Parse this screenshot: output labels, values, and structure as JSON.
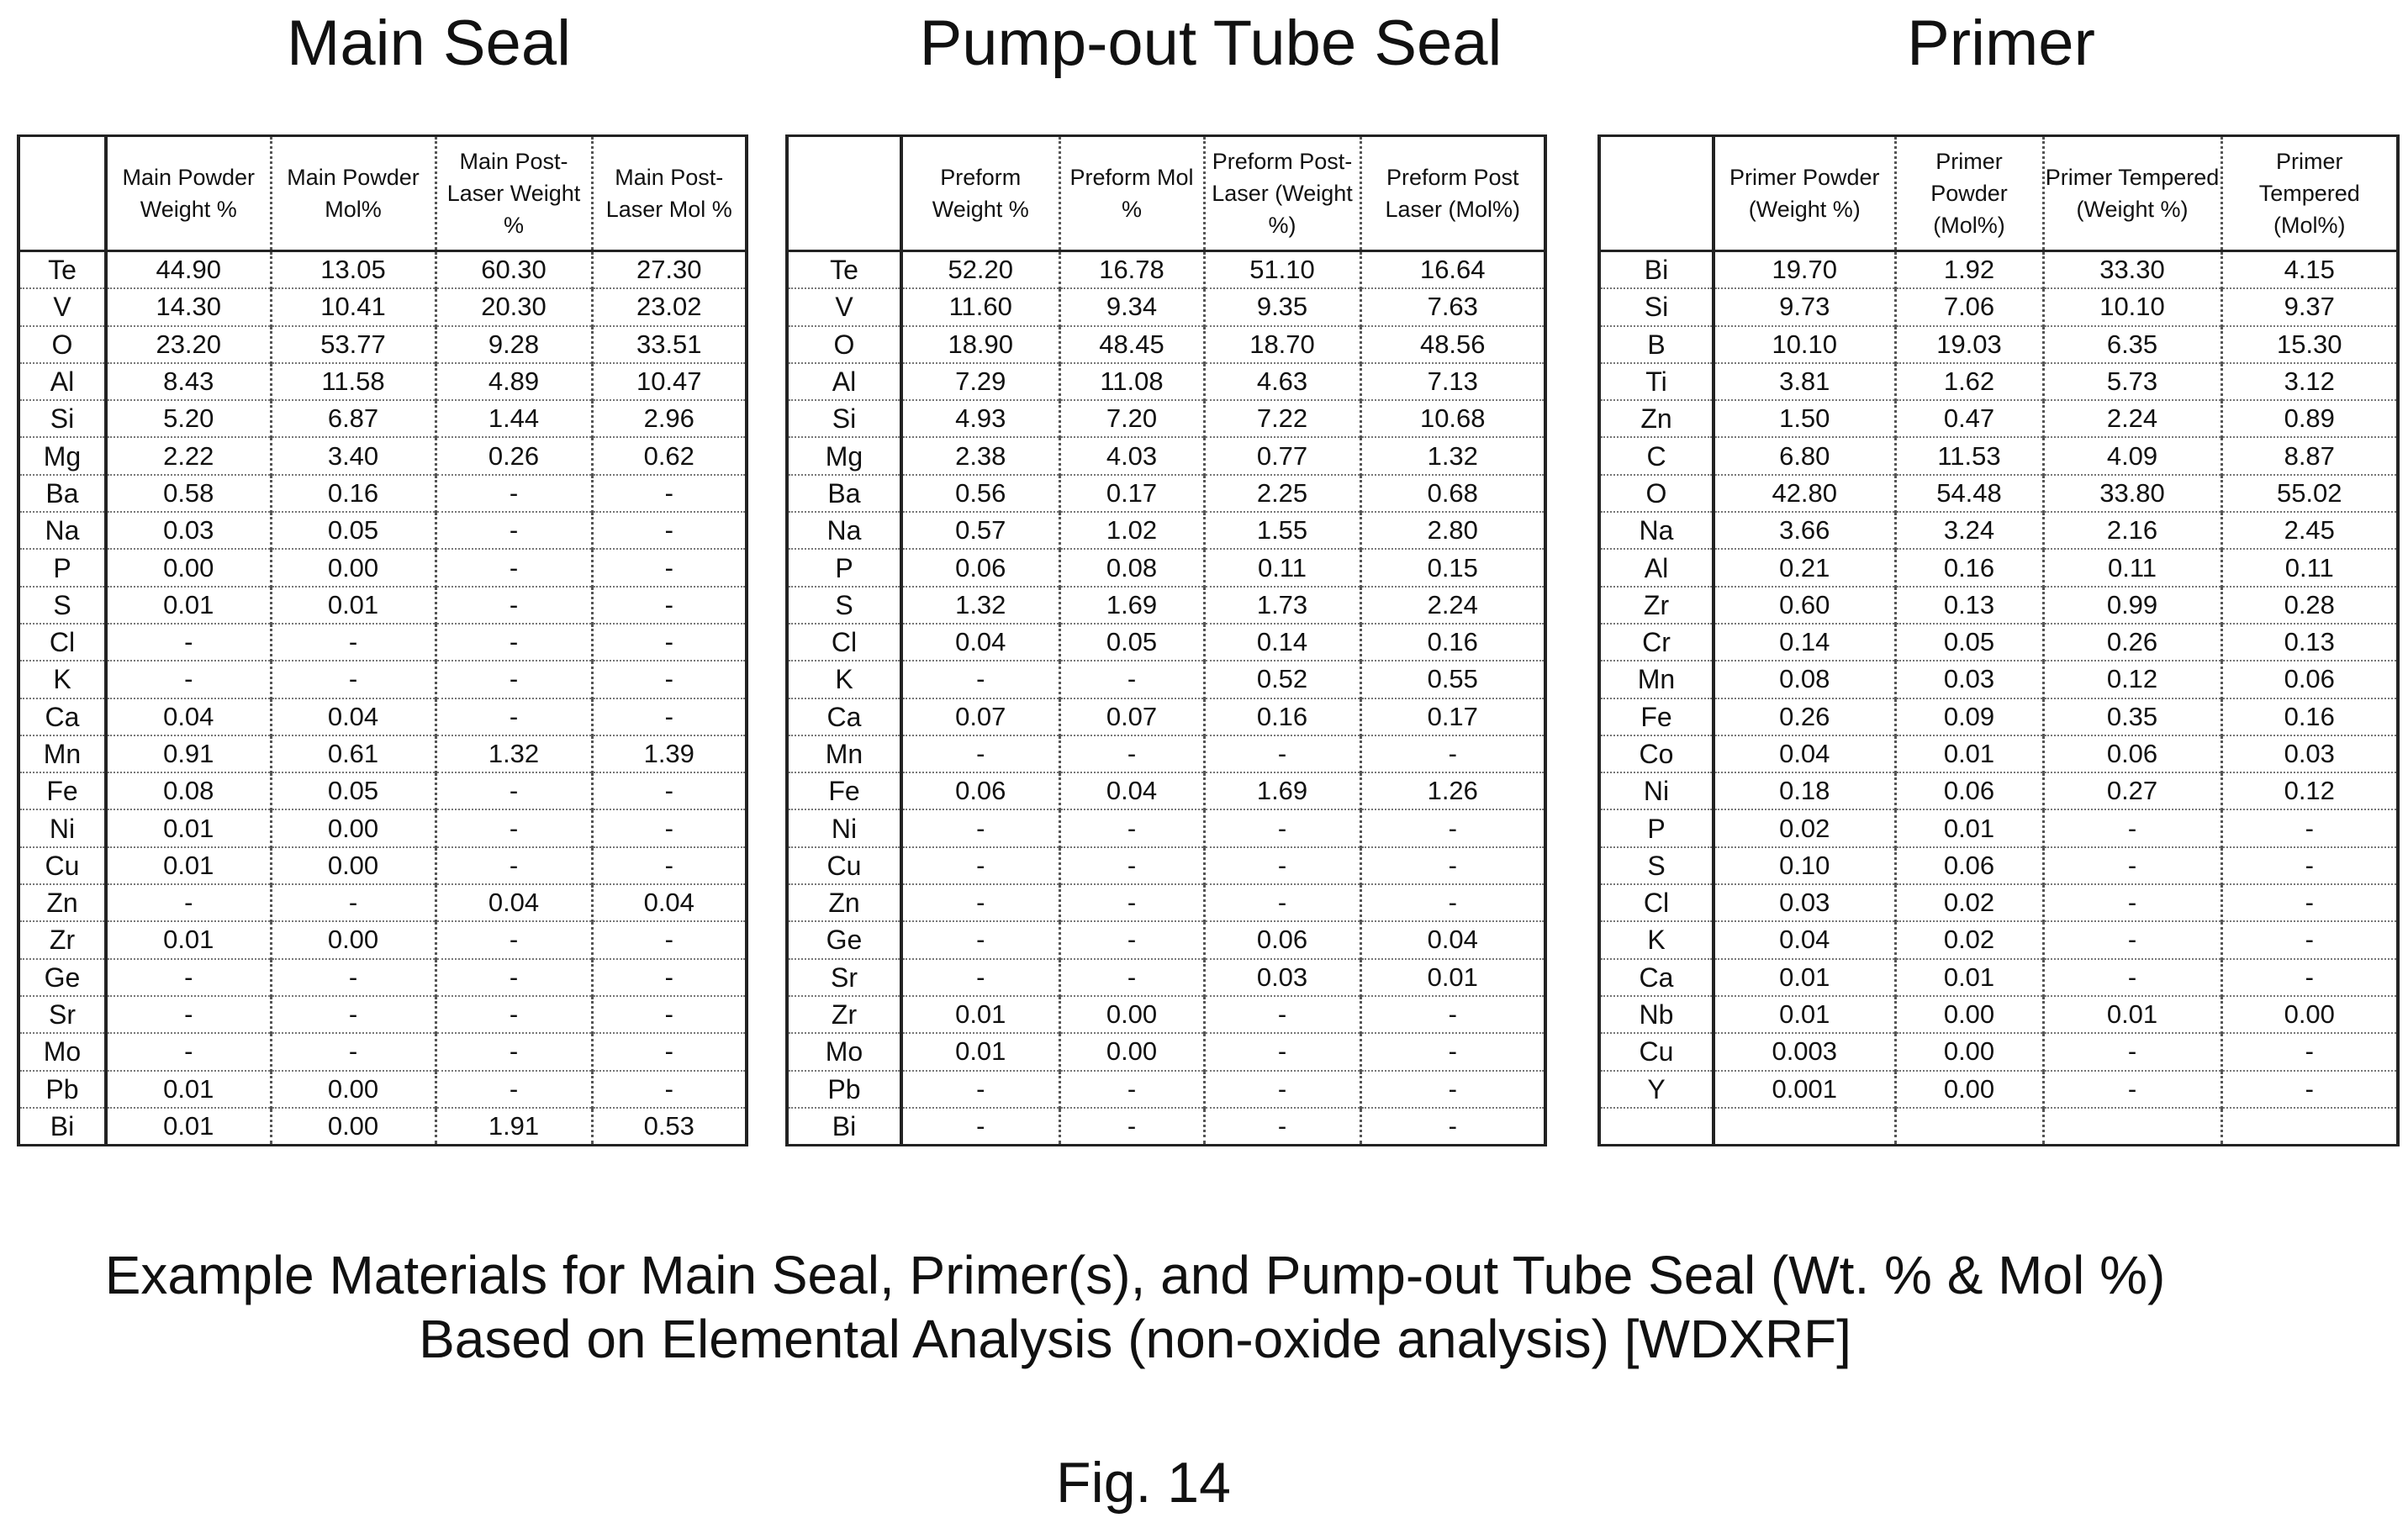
{
  "sections": {
    "main_seal": "Main Seal",
    "pump_out": "Pump-out Tube Seal",
    "primer": "Primer"
  },
  "main_table": {
    "headers": [
      "",
      "Main Powder Weight %",
      "Main Powder Mol%",
      "Main Post-Laser Weight %",
      "Main Post-Laser Mol %"
    ],
    "rows": [
      [
        "Te",
        "44.90",
        "13.05",
        "60.30",
        "27.30"
      ],
      [
        "V",
        "14.30",
        "10.41",
        "20.30",
        "23.02"
      ],
      [
        "O",
        "23.20",
        "53.77",
        "9.28",
        "33.51"
      ],
      [
        "Al",
        "8.43",
        "11.58",
        "4.89",
        "10.47"
      ],
      [
        "Si",
        "5.20",
        "6.87",
        "1.44",
        "2.96"
      ],
      [
        "Mg",
        "2.22",
        "3.40",
        "0.26",
        "0.62"
      ],
      [
        "Ba",
        "0.58",
        "0.16",
        "-",
        "-"
      ],
      [
        "Na",
        "0.03",
        "0.05",
        "-",
        "-"
      ],
      [
        "P",
        "0.00",
        "0.00",
        "-",
        "-"
      ],
      [
        "S",
        "0.01",
        "0.01",
        "-",
        "-"
      ],
      [
        "Cl",
        "-",
        "-",
        "-",
        "-"
      ],
      [
        "K",
        "-",
        "-",
        "-",
        "-"
      ],
      [
        "Ca",
        "0.04",
        "0.04",
        "-",
        "-"
      ],
      [
        "Mn",
        "0.91",
        "0.61",
        "1.32",
        "1.39"
      ],
      [
        "Fe",
        "0.08",
        "0.05",
        "-",
        "-"
      ],
      [
        "Ni",
        "0.01",
        "0.00",
        "-",
        "-"
      ],
      [
        "Cu",
        "0.01",
        "0.00",
        "-",
        "-"
      ],
      [
        "Zn",
        "-",
        "-",
        "0.04",
        "0.04"
      ],
      [
        "Zr",
        "0.01",
        "0.00",
        "-",
        "-"
      ],
      [
        "Ge",
        "-",
        "-",
        "-",
        "-"
      ],
      [
        "Sr",
        "-",
        "-",
        "-",
        "-"
      ],
      [
        "Mo",
        "-",
        "-",
        "-",
        "-"
      ],
      [
        "Pb",
        "0.01",
        "0.00",
        "-",
        "-"
      ],
      [
        "Bi",
        "0.01",
        "0.00",
        "1.91",
        "0.53"
      ]
    ]
  },
  "pump_table": {
    "headers": [
      "",
      "Preform Weight %",
      "Preform Mol %",
      "Preform Post-Laser (Weight %)",
      "Preform Post Laser (Mol%)"
    ],
    "rows": [
      [
        "Te",
        "52.20",
        "16.78",
        "51.10",
        "16.64"
      ],
      [
        "V",
        "11.60",
        "9.34",
        "9.35",
        "7.63"
      ],
      [
        "O",
        "18.90",
        "48.45",
        "18.70",
        "48.56"
      ],
      [
        "Al",
        "7.29",
        "11.08",
        "4.63",
        "7.13"
      ],
      [
        "Si",
        "4.93",
        "7.20",
        "7.22",
        "10.68"
      ],
      [
        "Mg",
        "2.38",
        "4.03",
        "0.77",
        "1.32"
      ],
      [
        "Ba",
        "0.56",
        "0.17",
        "2.25",
        "0.68"
      ],
      [
        "Na",
        "0.57",
        "1.02",
        "1.55",
        "2.80"
      ],
      [
        "P",
        "0.06",
        "0.08",
        "0.11",
        "0.15"
      ],
      [
        "S",
        "1.32",
        "1.69",
        "1.73",
        "2.24"
      ],
      [
        "Cl",
        "0.04",
        "0.05",
        "0.14",
        "0.16"
      ],
      [
        "K",
        "-",
        "-",
        "0.52",
        "0.55"
      ],
      [
        "Ca",
        "0.07",
        "0.07",
        "0.16",
        "0.17"
      ],
      [
        "Mn",
        "-",
        "-",
        "-",
        "-"
      ],
      [
        "Fe",
        "0.06",
        "0.04",
        "1.69",
        "1.26"
      ],
      [
        "Ni",
        "-",
        "-",
        "-",
        "-"
      ],
      [
        "Cu",
        "-",
        "-",
        "-",
        "-"
      ],
      [
        "Zn",
        "-",
        "-",
        "-",
        "-"
      ],
      [
        "Ge",
        "-",
        "-",
        "0.06",
        "0.04"
      ],
      [
        "Sr",
        "-",
        "-",
        "0.03",
        "0.01"
      ],
      [
        "Zr",
        "0.01",
        "0.00",
        "-",
        "-"
      ],
      [
        "Mo",
        "0.01",
        "0.00",
        "-",
        "-"
      ],
      [
        "Pb",
        "-",
        "-",
        "-",
        "-"
      ],
      [
        "Bi",
        "-",
        "-",
        "-",
        "-"
      ]
    ]
  },
  "primer_table": {
    "headers": [
      "",
      "Primer Powder (Weight %)",
      "Primer Powder (Mol%)",
      "Primer Tempered (Weight %)",
      "Primer Tempered (Mol%)"
    ],
    "rows": [
      [
        "Bi",
        "19.70",
        "1.92",
        "33.30",
        "4.15"
      ],
      [
        "Si",
        "9.73",
        "7.06",
        "10.10",
        "9.37"
      ],
      [
        "B",
        "10.10",
        "19.03",
        "6.35",
        "15.30"
      ],
      [
        "Ti",
        "3.81",
        "1.62",
        "5.73",
        "3.12"
      ],
      [
        "Zn",
        "1.50",
        "0.47",
        "2.24",
        "0.89"
      ],
      [
        "C",
        "6.80",
        "11.53",
        "4.09",
        "8.87"
      ],
      [
        "O",
        "42.80",
        "54.48",
        "33.80",
        "55.02"
      ],
      [
        "Na",
        "3.66",
        "3.24",
        "2.16",
        "2.45"
      ],
      [
        "Al",
        "0.21",
        "0.16",
        "0.11",
        "0.11"
      ],
      [
        "Zr",
        "0.60",
        "0.13",
        "0.99",
        "0.28"
      ],
      [
        "Cr",
        "0.14",
        "0.05",
        "0.26",
        "0.13"
      ],
      [
        "Mn",
        "0.08",
        "0.03",
        "0.12",
        "0.06"
      ],
      [
        "Fe",
        "0.26",
        "0.09",
        "0.35",
        "0.16"
      ],
      [
        "Co",
        "0.04",
        "0.01",
        "0.06",
        "0.03"
      ],
      [
        "Ni",
        "0.18",
        "0.06",
        "0.27",
        "0.12"
      ],
      [
        "P",
        "0.02",
        "0.01",
        "-",
        "-"
      ],
      [
        "S",
        "0.10",
        "0.06",
        "-",
        "-"
      ],
      [
        "Cl",
        "0.03",
        "0.02",
        "-",
        "-"
      ],
      [
        "K",
        "0.04",
        "0.02",
        "-",
        "-"
      ],
      [
        "Ca",
        "0.01",
        "0.01",
        "-",
        "-"
      ],
      [
        "Nb",
        "0.01",
        "0.00",
        "0.01",
        "0.00"
      ],
      [
        "Cu",
        "0.003",
        "0.00",
        "-",
        "-"
      ],
      [
        "Y",
        "0.001",
        "0.00",
        "-",
        "-"
      ],
      [
        "",
        "",
        "",
        "",
        ""
      ]
    ]
  },
  "caption": {
    "line1": "Example Materials for Main Seal, Primer(s), and Pump-out Tube Seal (Wt. % & Mol %)",
    "line2": "Based on Elemental Analysis (non-oxide analysis) [WDXRF]"
  },
  "figure_label": "Fig. 14"
}
